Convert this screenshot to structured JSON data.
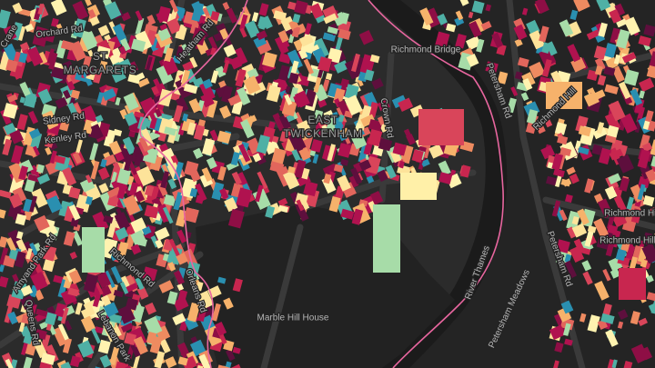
{
  "map": {
    "labels": [
      "Orchard Rd",
      "ST",
      "MARGARETS",
      "Heatham Rd",
      "Richmond Bridge",
      "Petersham Rd",
      "Richmond Hill",
      "Sidney Rd",
      "Kenley Rd",
      "EAST",
      "TWICKENHAM",
      "Crown Rd",
      "Richmond Rd",
      "Amyand Park Rd",
      "Marble Hill House",
      "Orleans Rd",
      "Lebanon Park",
      "River Thames",
      "Petersham Meadows",
      "Petersham Rd",
      "Richmond Hill",
      "Richmond Hill",
      "Queens Rd",
      "Crane"
    ]
  }
}
